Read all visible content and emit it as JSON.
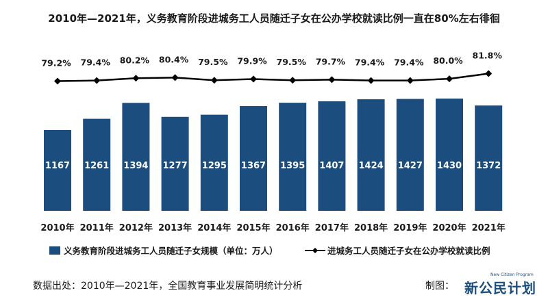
{
  "title": "2010年—2021年，义务教育阶段进城务工人员随迁子女在公办学校就读比例一直在80%左右徘徊",
  "footer": {
    "source": "数据出处：2010年—2021年，全国教育事业发展简明统计分析",
    "maker_label": "制图：",
    "logo_text": "新公民计划",
    "logo_small": "New Citizen Program"
  },
  "chart_data": {
    "type": "bar",
    "categories": [
      "2010年",
      "2011年",
      "2012年",
      "2013年",
      "2014年",
      "2015年",
      "2016年",
      "2017年",
      "2018年",
      "2019年",
      "2020年",
      "2021年"
    ],
    "series": [
      {
        "name": "义务教育阶段进城务工人员随迁子女规模（单位：万人）",
        "type": "bar",
        "values": [
          1167,
          1261,
          1394,
          1277,
          1295,
          1367,
          1395,
          1407,
          1424,
          1427,
          1430,
          1372
        ],
        "labels": [
          "1167",
          "1261",
          "1394",
          "1277",
          "1295",
          "1367",
          "1395",
          "1407",
          "1424",
          "1427",
          "1430",
          "1372"
        ],
        "color": "#1b4d7e"
      },
      {
        "name": "进城务工人员随迁子女在公办学校就读比例",
        "type": "line",
        "values": [
          79.2,
          79.4,
          80.2,
          80.4,
          79.5,
          79.9,
          79.5,
          79.7,
          79.4,
          79.4,
          80.0,
          81.8
        ],
        "labels": [
          "79.2%",
          "79.4%",
          "80.2%",
          "80.4%",
          "79.5%",
          "79.9%",
          "79.5%",
          "79.7%",
          "79.4%",
          "79.4%",
          "80.0%",
          "81.8%"
        ],
        "color": "#000000"
      }
    ],
    "legend_position": "bottom",
    "grid": false
  }
}
